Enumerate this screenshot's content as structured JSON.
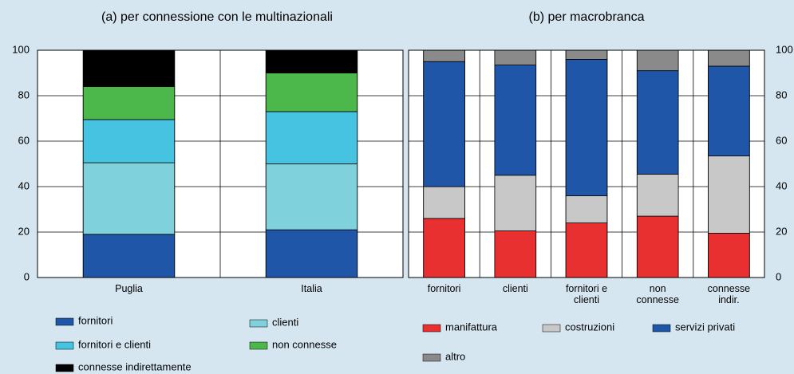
{
  "chart_data": [
    {
      "type": "stacked_bar",
      "title": "(a) per connessione con le multinazionali",
      "categories": [
        "Puglia",
        "Italia"
      ],
      "series": [
        {
          "name": "fornitori",
          "color": "#1f56a8",
          "values": [
            19,
            21
          ]
        },
        {
          "name": "clienti",
          "color": "#7fd1dc",
          "values": [
            31.5,
            29
          ]
        },
        {
          "name": "fornitori e clienti",
          "color": "#46c3e0",
          "values": [
            19,
            23
          ]
        },
        {
          "name": "non connesse",
          "color": "#4cb84c",
          "values": [
            14.5,
            17
          ]
        },
        {
          "name": "connesse indirettamente",
          "color": "#000000",
          "values": [
            16,
            10
          ]
        }
      ],
      "ylim": [
        0,
        100
      ],
      "yticks": [
        0,
        20,
        40,
        60,
        80,
        100
      ],
      "grid": true,
      "y_axis_side": "left"
    },
    {
      "type": "stacked_bar",
      "title": "(b) per macrobranca",
      "categories": [
        "fornitori",
        "clienti",
        "fornitori e clienti",
        "non connesse",
        "connesse indir."
      ],
      "series": [
        {
          "name": "manifattura",
          "color": "#e83030",
          "values": [
            26,
            20.5,
            24,
            27,
            19.5
          ]
        },
        {
          "name": "costruzioni",
          "color": "#c8c8c8",
          "values": [
            14,
            24.5,
            12,
            18.5,
            34
          ]
        },
        {
          "name": "servizi privati",
          "color": "#1f56a8",
          "values": [
            55,
            48.5,
            60,
            45.5,
            39.5
          ]
        },
        {
          "name": "altro",
          "color": "#8a8a8a",
          "values": [
            5,
            6.5,
            4,
            9,
            7
          ]
        }
      ],
      "ylim": [
        0,
        100
      ],
      "yticks": [
        0,
        20,
        40,
        60,
        80,
        100
      ],
      "grid": true,
      "y_axis_side": "right"
    }
  ]
}
